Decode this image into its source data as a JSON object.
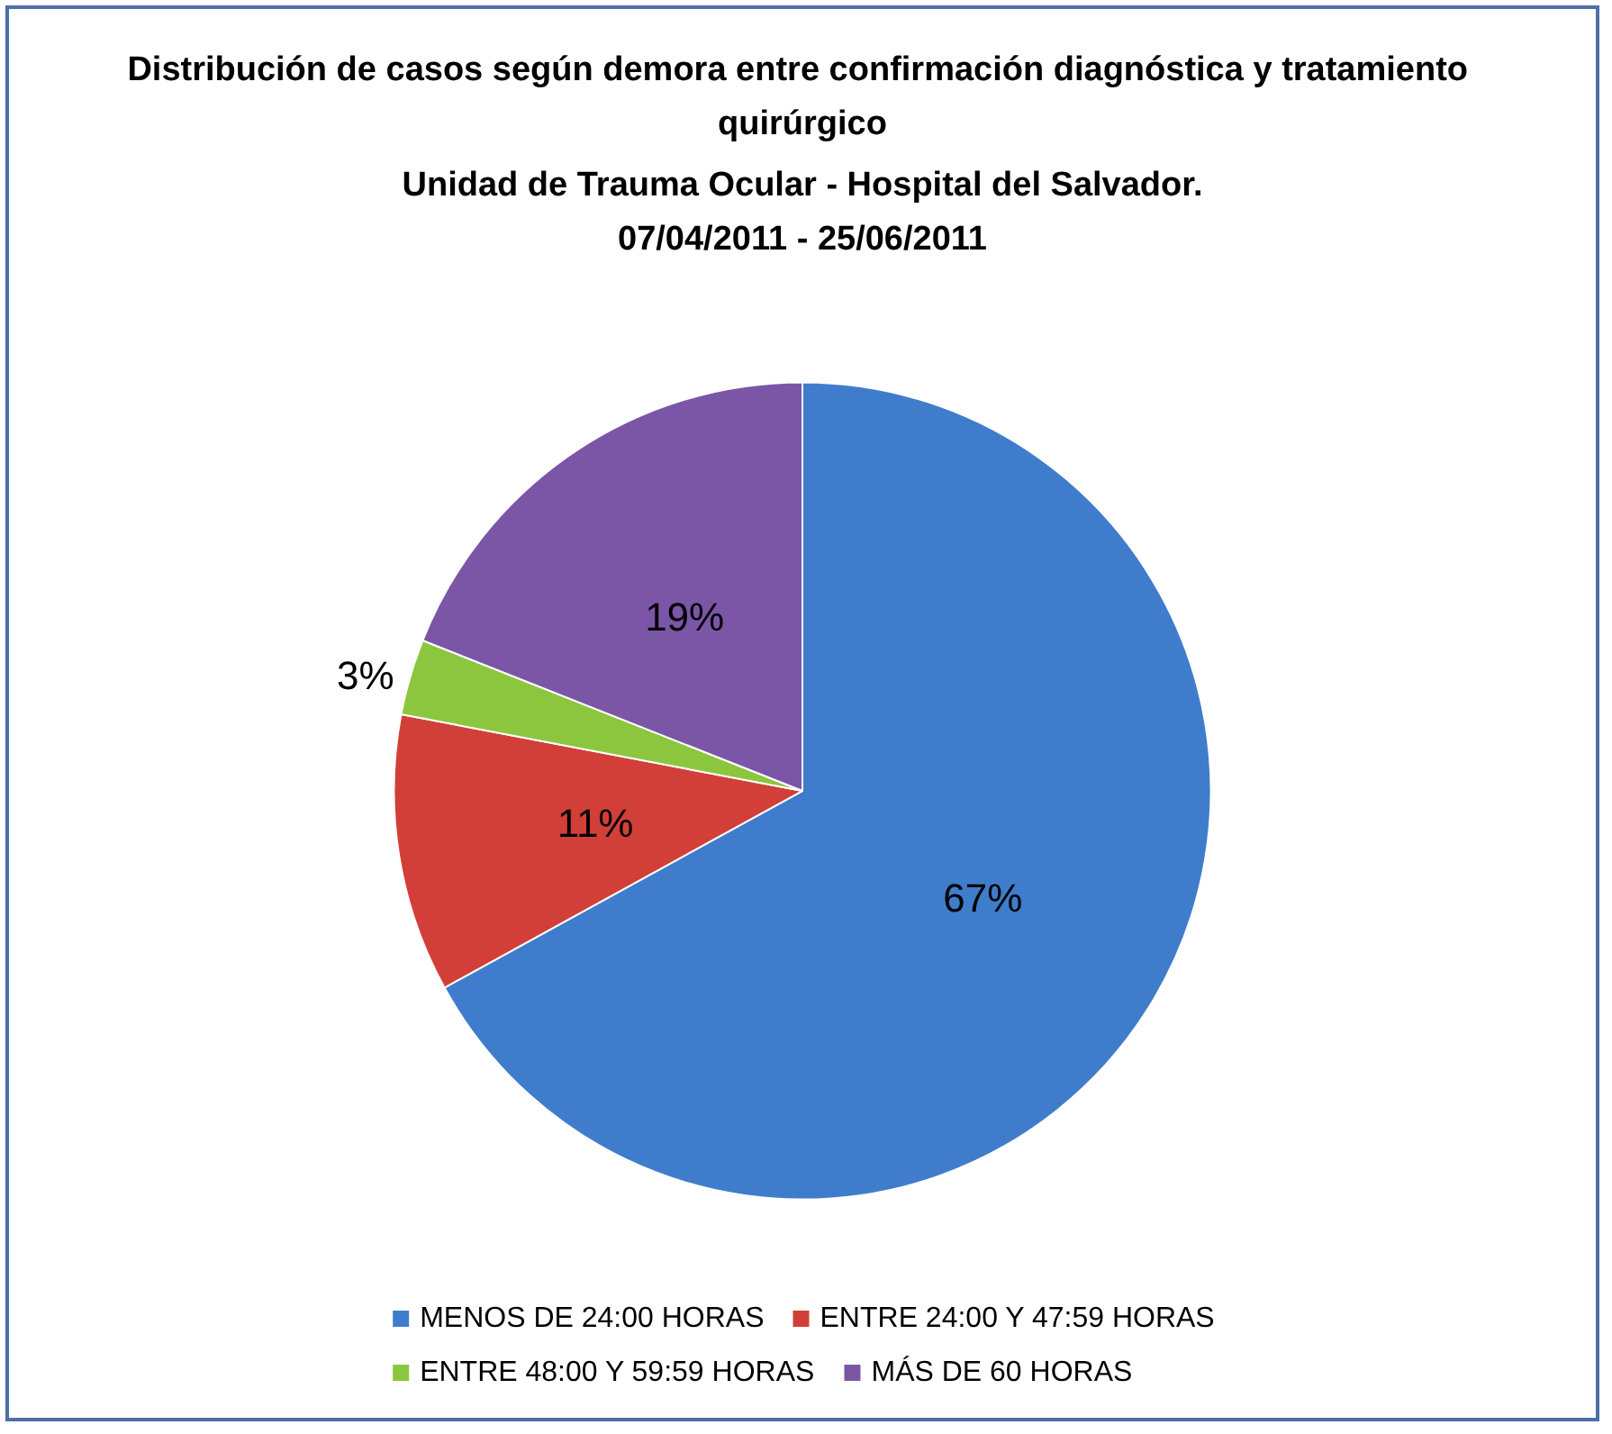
{
  "chart_data": {
    "type": "pie",
    "title": "Distribución de casos según demora entre confirmación diagnóstica y tratamiento quirúrgico",
    "subtitle": "Unidad de Trauma Ocular - Hospital del Salvador.\n07/04/2011 - 25/06/2011",
    "categories": [
      "MENOS DE 24:00 HORAS",
      "ENTRE 24:00 Y 47:59 HORAS",
      "ENTRE 48:00 Y 59:59 HORAS",
      "MÁS DE 60 HORAS"
    ],
    "values": [
      67,
      11,
      3,
      19
    ],
    "colors": [
      "#3f7dcc",
      "#d23f38",
      "#8cc63f",
      "#7b56a6"
    ],
    "value_labels": [
      "67%",
      "11%",
      "3%",
      "19%"
    ],
    "legend": "bottom"
  }
}
